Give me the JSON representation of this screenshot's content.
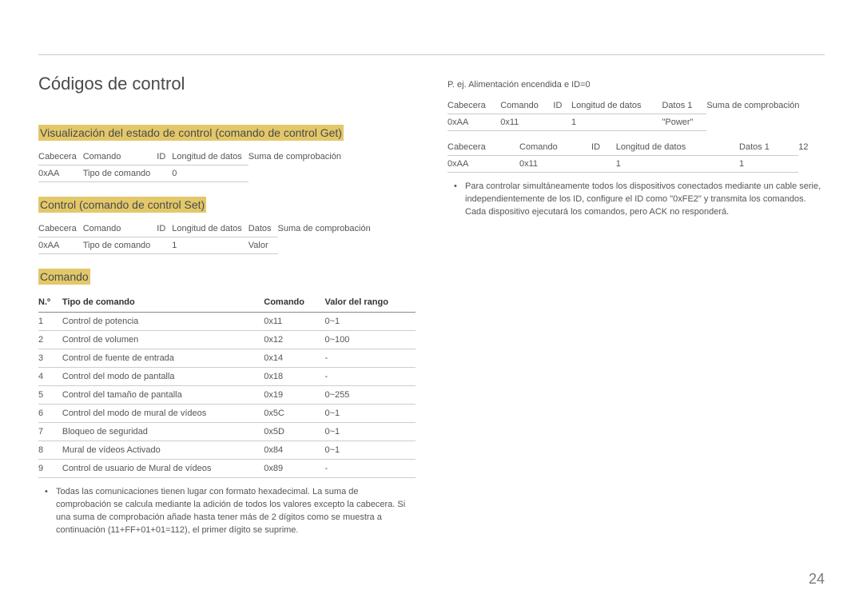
{
  "page": {
    "number": "24"
  },
  "left": {
    "title": "Códigos de control",
    "section_get": {
      "heading": "Visualización del estado de control (comando de control Get)",
      "headers": [
        "Cabecera",
        "Comando",
        "ID",
        "Longitud de datos",
        "Suma de comprobación"
      ],
      "row": [
        "0xAA",
        "Tipo de comando",
        "",
        "0",
        ""
      ]
    },
    "section_set": {
      "heading": "Control (comando de control Set)",
      "headers": [
        "Cabecera",
        "Comando",
        "ID",
        "Longitud de datos",
        "Datos",
        "Suma de comprobación"
      ],
      "row": [
        "0xAA",
        "Tipo de comando",
        "",
        "1",
        "Valor",
        ""
      ]
    },
    "section_comando": {
      "heading": "Comando",
      "columns": [
        "N.º",
        "Tipo de comando",
        "Comando",
        "Valor del rango"
      ],
      "rows": [
        [
          "1",
          "Control de potencia",
          "0x11",
          "0~1"
        ],
        [
          "2",
          "Control de volumen",
          "0x12",
          "0~100"
        ],
        [
          "3",
          "Control de fuente de entrada",
          "0x14",
          "-"
        ],
        [
          "4",
          "Control del modo de pantalla",
          "0x18",
          "-"
        ],
        [
          "5",
          "Control del tamaño de pantalla",
          "0x19",
          "0~255"
        ],
        [
          "6",
          "Control del modo de mural de vídeos",
          "0x5C",
          "0~1"
        ],
        [
          "7",
          "Bloqueo de seguridad",
          "0x5D",
          "0~1"
        ],
        [
          "8",
          "Mural de vídeos Activado",
          "0x84",
          "0~1"
        ],
        [
          "9",
          "Control de usuario de Mural de vídeos",
          "0x89",
          "-"
        ]
      ]
    },
    "note": "Todas las comunicaciones tienen lugar con formato hexadecimal. La suma de comprobación se calcula mediante la adición de todos los valores excepto la cabecera. Si una suma de comprobación añade hasta tener más de 2 dígitos como se muestra a continuación (11+FF+01+01=112), el primer dígito se suprime."
  },
  "right": {
    "example_label": "P. ej. Alimentación encendida e ID=0",
    "table1": {
      "headers": [
        "Cabecera",
        "Comando",
        "ID",
        "Longitud de datos",
        "Datos 1",
        "Suma de comprobación"
      ],
      "row": [
        "0xAA",
        "0x11",
        "",
        "1",
        "\"Power\"",
        ""
      ]
    },
    "table2": {
      "headers": [
        "Cabecera",
        "Comando",
        "ID",
        "Longitud de datos",
        "Datos 1",
        ""
      ],
      "row": [
        "0xAA",
        "0x11",
        "",
        "1",
        "1",
        ""
      ],
      "extra": "12"
    },
    "note": "Para controlar simultáneamente todos los dispositivos conectados mediante un cable serie, independientemente de los ID, configure el ID como \"0xFE2\" y transmita los comandos. Cada dispositivo ejecutará los comandos, pero ACK no responderá."
  },
  "style": {
    "highlight_bg": "#e3c86a",
    "rule_color": "#cccccc",
    "text_color": "#555555"
  }
}
